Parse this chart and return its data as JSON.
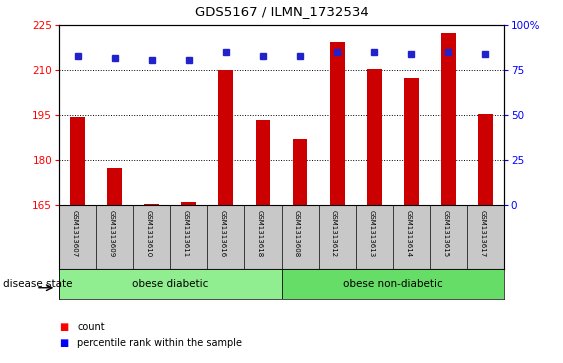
{
  "title": "GDS5167 / ILMN_1732534",
  "samples": [
    "GSM1313607",
    "GSM1313609",
    "GSM1313610",
    "GSM1313611",
    "GSM1313616",
    "GSM1313618",
    "GSM1313608",
    "GSM1313612",
    "GSM1313613",
    "GSM1313614",
    "GSM1313615",
    "GSM1313617"
  ],
  "bar_values": [
    194.5,
    177.5,
    165.3,
    166.0,
    210.0,
    193.5,
    187.0,
    219.5,
    210.5,
    207.5,
    222.5,
    195.5
  ],
  "percentile_values": [
    83,
    82,
    81,
    81,
    85,
    83,
    83,
    85,
    85,
    84,
    85,
    84
  ],
  "bar_color": "#cc0000",
  "dot_color": "#2222cc",
  "ylim_left": [
    165,
    225
  ],
  "ylim_right": [
    0,
    100
  ],
  "yticks_left": [
    165,
    180,
    195,
    210,
    225
  ],
  "yticks_right": [
    0,
    25,
    50,
    75,
    100
  ],
  "groups": [
    {
      "label": "obese diabetic",
      "start": 0,
      "end": 5,
      "color": "#90ee90"
    },
    {
      "label": "obese non-diabetic",
      "start": 6,
      "end": 11,
      "color": "#66dd66"
    }
  ],
  "group_separator": 5,
  "disease_state_label": "disease state",
  "legend_count_label": "count",
  "legend_percentile_label": "percentile rank within the sample",
  "xtick_bg_color": "#c8c8c8",
  "plot_bg_color": "#ffffff",
  "fig_bg_color": "#ffffff",
  "bar_width": 0.4,
  "n_samples": 12
}
